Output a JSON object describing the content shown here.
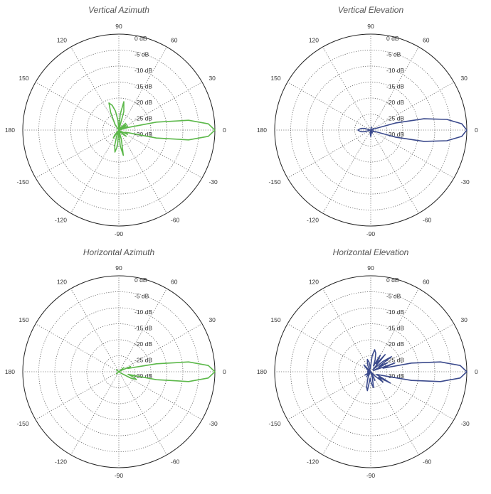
{
  "chart_data": [
    {
      "type": "polar",
      "title": "Vertical Azimuth",
      "color": "#5cb84a",
      "angle_labels": [
        "90",
        "60",
        "30",
        "0",
        "-30",
        "-60",
        "-90",
        "-120",
        "-150",
        "180",
        "150",
        "120"
      ],
      "radial_labels": [
        "0 dB",
        "-5 dB",
        "-10 dB",
        "-15 dB",
        "-20 dB",
        "-25 dB",
        "-30 dB"
      ],
      "rlim_db": [
        -30,
        0
      ],
      "grid": true,
      "series": [
        {
          "angle_deg": [
            0,
            4,
            8,
            12,
            16,
            20,
            24,
            28,
            32,
            36,
            40,
            45,
            50,
            55,
            60,
            65,
            70,
            75,
            80,
            85,
            90,
            95,
            100,
            105,
            110,
            115,
            120,
            125,
            130,
            135,
            140,
            150,
            160,
            170,
            180,
            190,
            200,
            210,
            220,
            225,
            230,
            235,
            240,
            245,
            250,
            255,
            260,
            265,
            270,
            275,
            280,
            285,
            290,
            295,
            300,
            305,
            310,
            315,
            320,
            325,
            330,
            335,
            340,
            344,
            348,
            352,
            356
          ],
          "gain_db": [
            0,
            -2,
            -8,
            -18,
            -27,
            -30,
            -27,
            -30,
            -28,
            -27,
            -30,
            -27,
            -29,
            -30,
            -30,
            -29,
            -30,
            -24,
            -21,
            -25,
            -30,
            -27,
            -24,
            -22,
            -21,
            -24,
            -27,
            -28,
            -30,
            -30,
            -30,
            -30,
            -30,
            -30,
            -30,
            -30,
            -30,
            -30,
            -30,
            -30,
            -28,
            -27,
            -30,
            -30,
            -28,
            -25,
            -23,
            -25,
            -30,
            -25,
            -22,
            -27,
            -30,
            -29,
            -30,
            -30,
            -30,
            -28,
            -27,
            -30,
            -29,
            -27,
            -28,
            -27,
            -18,
            -8,
            -2
          ]
        }
      ]
    },
    {
      "type": "polar",
      "title": "Vertical Elevation",
      "color": "#3b4a8c",
      "angle_labels": [
        "90",
        "60",
        "30",
        "0",
        "-30",
        "-60",
        "-90",
        "-120",
        "-150",
        "180",
        "150",
        "120"
      ],
      "radial_labels": [
        "0 dB",
        "-5 dB",
        "-10 dB",
        "-15 dB",
        "-20 dB",
        "-25 dB",
        "-30 dB"
      ],
      "rlim_db": [
        -30,
        0
      ],
      "grid": true,
      "series": [
        {
          "angle_deg": [
            0,
            4,
            8,
            12,
            16,
            20,
            24,
            30,
            40,
            60,
            80,
            100,
            120,
            150,
            165,
            170,
            175,
            180,
            185,
            190,
            195,
            210,
            240,
            260,
            270,
            280,
            290,
            300,
            320,
            330,
            336,
            340,
            344,
            348,
            352,
            356
          ],
          "gain_db": [
            0,
            -1.5,
            -6,
            -13,
            -22,
            -29,
            -30,
            -29,
            -30,
            -30,
            -29,
            -30,
            -30,
            -30,
            -28,
            -27,
            -26.5,
            -26,
            -26.5,
            -27,
            -28,
            -30,
            -30,
            -29,
            -28,
            -29,
            -30,
            -29,
            -30,
            -29,
            -30,
            -29,
            -22,
            -13,
            -6,
            -1.5
          ]
        }
      ]
    },
    {
      "type": "polar",
      "title": "Horizontal Azimuth",
      "color": "#5cb84a",
      "angle_labels": [
        "90",
        "60",
        "30",
        "0",
        "-30",
        "-60",
        "-90",
        "-120",
        "-150",
        "180",
        "150",
        "120"
      ],
      "radial_labels": [
        "0 dB",
        "-5 dB",
        "-10 dB",
        "-15 dB",
        "-20 dB",
        "-25 dB",
        "-30 dB"
      ],
      "rlim_db": [
        -30,
        0
      ],
      "grid": true,
      "series": [
        {
          "angle_deg": [
            0,
            4,
            8,
            12,
            16,
            20,
            24,
            28,
            32,
            40,
            50,
            60,
            80,
            100,
            120,
            140,
            160,
            180,
            200,
            220,
            240,
            260,
            280,
            300,
            320,
            328,
            332,
            336,
            340,
            344,
            348,
            352,
            356
          ],
          "gain_db": [
            0,
            -2,
            -8,
            -18,
            -25,
            -27,
            -26,
            -29,
            -30,
            -28,
            -30,
            -30,
            -30,
            -30,
            -30,
            -29,
            -30,
            -30,
            -30,
            -29,
            -30,
            -30,
            -30,
            -30,
            -30,
            -29,
            -26,
            -24,
            -25,
            -27,
            -18,
            -8,
            -2
          ]
        }
      ]
    },
    {
      "type": "polar",
      "title": "Horizontal Elevation",
      "color": "#3b4a8c",
      "angle_labels": [
        "90",
        "60",
        "30",
        "0",
        "-30",
        "-60",
        "-90",
        "-120",
        "-150",
        "180",
        "150",
        "120"
      ],
      "radial_labels": [
        "0 dB",
        "-5 dB",
        "-10 dB",
        "-15 dB",
        "-20 dB",
        "-25 dB",
        "-30 dB"
      ],
      "rlim_db": [
        -30,
        0
      ],
      "grid": true,
      "series": [
        {
          "angle_deg": [
            0,
            4,
            8,
            12,
            16,
            20,
            24,
            28,
            32,
            36,
            40,
            45,
            50,
            55,
            60,
            65,
            70,
            75,
            80,
            85,
            90,
            95,
            100,
            105,
            110,
            115,
            120,
            125,
            130,
            135,
            140,
            150,
            160,
            170,
            180,
            190,
            200,
            210,
            220,
            225,
            230,
            235,
            240,
            245,
            250,
            255,
            260,
            265,
            270,
            275,
            280,
            285,
            290,
            295,
            300,
            305,
            310,
            315,
            320,
            325,
            330,
            335,
            340,
            344,
            348,
            352,
            356
          ],
          "gain_db": [
            0,
            -2,
            -8,
            -17,
            -26,
            -22,
            -29,
            -24,
            -27,
            -22,
            -25,
            -29,
            -23,
            -27,
            -24,
            -28,
            -26,
            -24,
            -23,
            -25,
            -28,
            -29,
            -27,
            -26,
            -27,
            -28,
            -30,
            -30,
            -30,
            -27,
            -28,
            -29,
            -30,
            -29,
            -30,
            -29,
            -30,
            -28,
            -29,
            -30,
            -28,
            -30,
            -29,
            -28,
            -27,
            -25,
            -24,
            -28,
            -27,
            -26,
            -25,
            -28,
            -30,
            -27,
            -29,
            -30,
            -30,
            -28,
            -25,
            -27,
            -23,
            -28,
            -27,
            -25,
            -17,
            -8,
            -2
          ]
        }
      ]
    }
  ]
}
